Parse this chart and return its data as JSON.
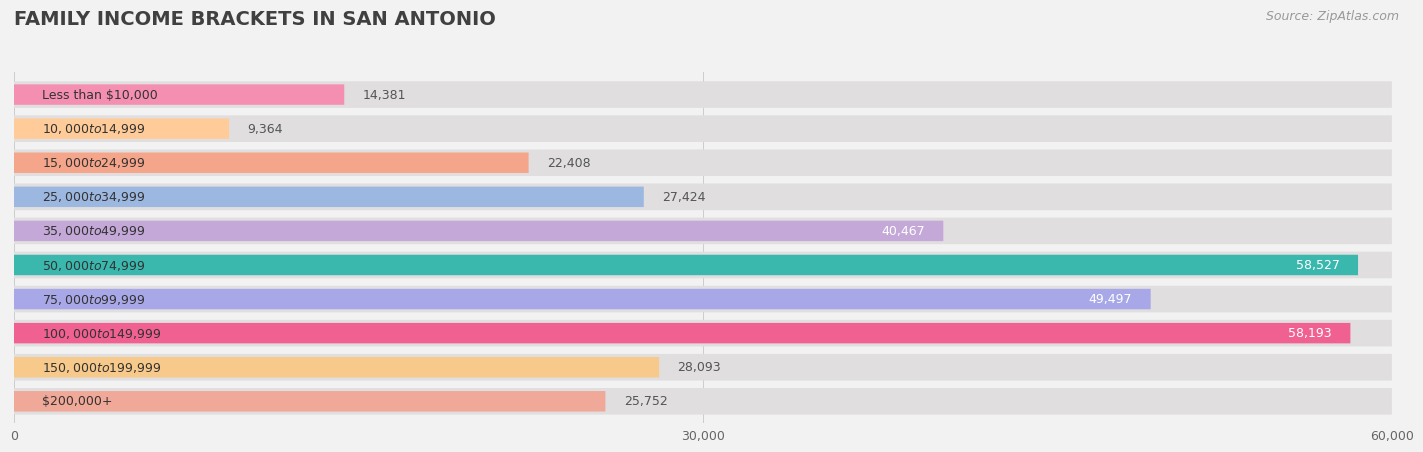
{
  "title": "FAMILY INCOME BRACKETS IN SAN ANTONIO",
  "source": "Source: ZipAtlas.com",
  "categories": [
    "Less than $10,000",
    "$10,000 to $14,999",
    "$15,000 to $24,999",
    "$25,000 to $34,999",
    "$35,000 to $49,999",
    "$50,000 to $74,999",
    "$75,000 to $99,999",
    "$100,000 to $149,999",
    "$150,000 to $199,999",
    "$200,000+"
  ],
  "values": [
    14381,
    9364,
    22408,
    27424,
    40467,
    58527,
    49497,
    58193,
    28093,
    25752
  ],
  "bar_colors": [
    "#f48fb1",
    "#ffcc99",
    "#f4a58a",
    "#9db8e0",
    "#c3a8d8",
    "#3ab8ae",
    "#a8a8e8",
    "#f06090",
    "#f7c98a",
    "#f0a898"
  ],
  "xlim_max": 60000,
  "xticks": [
    0,
    30000,
    60000
  ],
  "xticklabels": [
    "0",
    "30,000",
    "60,000"
  ],
  "bg_color": "#f2f2f2",
  "bar_bg_color": "#e0dede",
  "inside_label_threshold": 35000,
  "title_fontsize": 14,
  "source_fontsize": 9,
  "label_fontsize": 9,
  "cat_fontsize": 9
}
